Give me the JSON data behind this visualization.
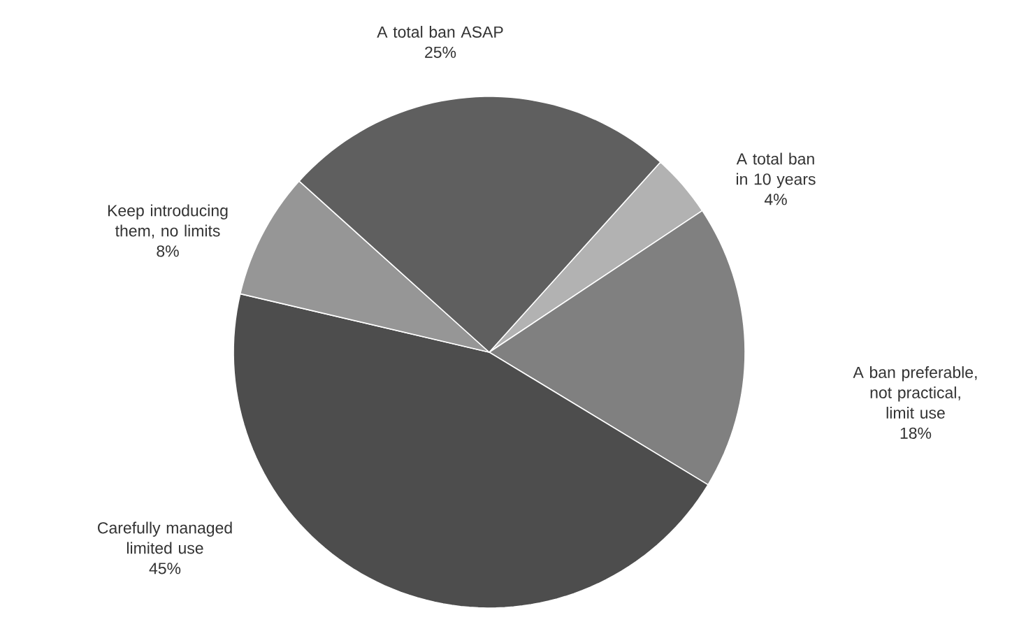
{
  "chart_data": {
    "type": "pie",
    "categories": [
      "A total ban in 10 years",
      "A ban preferable, not practical, limit use",
      "Carefully managed limited use",
      "Keep introducing them, no limits",
      "A total ban  ASAP"
    ],
    "values": [
      4,
      18,
      45,
      8,
      25
    ],
    "value_labels": [
      "4%",
      "18%",
      "45%",
      "8%",
      "25%"
    ],
    "colors": [
      "#b2b2b2",
      "#808080",
      "#4d4d4d",
      "#969696",
      "#5f5f5f"
    ]
  }
}
